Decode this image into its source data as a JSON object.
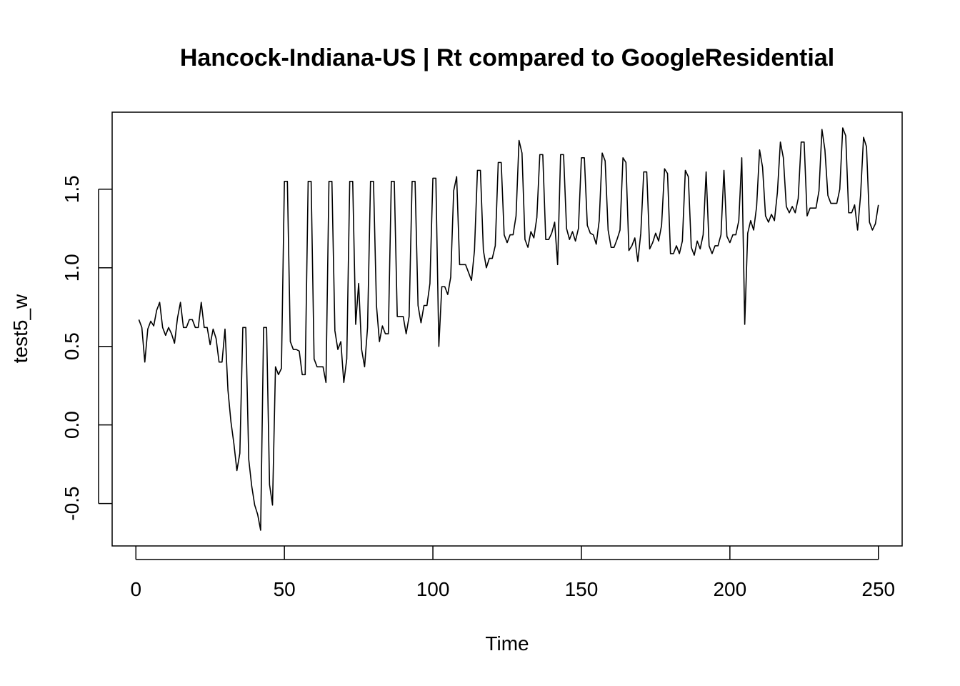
{
  "chart_data": {
    "type": "line",
    "title": "Hancock-Indiana-US | Rt compared to GoogleResidential",
    "xlabel": "Time",
    "ylabel": "test5_w",
    "xlim": [
      -8,
      258
    ],
    "ylim": [
      -0.77,
      1.99
    ],
    "xticks": [
      0,
      50,
      100,
      150,
      200,
      250
    ],
    "xtick_labels": [
      "0",
      "50",
      "100",
      "150",
      "200",
      "250"
    ],
    "yticks": [
      -0.5,
      0.0,
      0.5,
      1.0,
      1.5
    ],
    "ytick_labels": [
      "-0.5",
      "0.0",
      "0.5",
      "1.0",
      "1.5"
    ],
    "grid": false,
    "series": [
      {
        "x_start": 1,
        "values": [
          0.67,
          0.62,
          0.4,
          0.61,
          0.66,
          0.63,
          0.73,
          0.78,
          0.62,
          0.57,
          0.62,
          0.58,
          0.52,
          0.68,
          0.78,
          0.62,
          0.62,
          0.67,
          0.67,
          0.62,
          0.62,
          0.78,
          0.62,
          0.62,
          0.51,
          0.61,
          0.55,
          0.4,
          0.4,
          0.61,
          0.22,
          0.02,
          -0.12,
          -0.29,
          -0.18,
          0.62,
          0.62,
          -0.22,
          -0.39,
          -0.51,
          -0.57,
          -0.67,
          0.62,
          0.62,
          -0.38,
          -0.51,
          0.37,
          0.32,
          0.36,
          1.55,
          1.55,
          0.53,
          0.48,
          0.48,
          0.47,
          0.32,
          0.32,
          1.55,
          1.55,
          0.42,
          0.37,
          0.37,
          0.37,
          0.27,
          1.55,
          1.55,
          0.6,
          0.48,
          0.53,
          0.27,
          0.42,
          1.55,
          1.55,
          0.64,
          0.9,
          0.48,
          0.37,
          0.62,
          1.55,
          1.55,
          0.76,
          0.53,
          0.63,
          0.58,
          0.58,
          1.55,
          1.55,
          0.69,
          0.69,
          0.69,
          0.58,
          0.69,
          1.55,
          1.55,
          0.76,
          0.65,
          0.76,
          0.76,
          0.9,
          1.57,
          1.57,
          0.5,
          0.88,
          0.88,
          0.83,
          0.94,
          1.49,
          1.58,
          1.02,
          1.02,
          1.02,
          0.97,
          0.92,
          1.11,
          1.62,
          1.62,
          1.11,
          1.0,
          1.06,
          1.06,
          1.14,
          1.67,
          1.67,
          1.21,
          1.16,
          1.21,
          1.21,
          1.33,
          1.81,
          1.73,
          1.18,
          1.13,
          1.23,
          1.19,
          1.32,
          1.72,
          1.72,
          1.18,
          1.18,
          1.22,
          1.29,
          1.02,
          1.72,
          1.72,
          1.25,
          1.18,
          1.23,
          1.17,
          1.25,
          1.7,
          1.7,
          1.27,
          1.22,
          1.21,
          1.15,
          1.3,
          1.73,
          1.68,
          1.24,
          1.13,
          1.13,
          1.18,
          1.24,
          1.7,
          1.67,
          1.11,
          1.14,
          1.19,
          1.04,
          1.22,
          1.61,
          1.61,
          1.12,
          1.16,
          1.22,
          1.17,
          1.27,
          1.63,
          1.6,
          1.09,
          1.09,
          1.14,
          1.09,
          1.17,
          1.62,
          1.58,
          1.13,
          1.08,
          1.17,
          1.12,
          1.21,
          1.61,
          1.14,
          1.09,
          1.14,
          1.14,
          1.21,
          1.62,
          1.2,
          1.16,
          1.21,
          1.21,
          1.3,
          1.7,
          0.64,
          1.22,
          1.3,
          1.24,
          1.39,
          1.75,
          1.64,
          1.33,
          1.29,
          1.34,
          1.3,
          1.48,
          1.8,
          1.7,
          1.39,
          1.35,
          1.39,
          1.35,
          1.44,
          1.8,
          1.8,
          1.33,
          1.38,
          1.38,
          1.38,
          1.49,
          1.88,
          1.75,
          1.46,
          1.41,
          1.41,
          1.41,
          1.5,
          1.89,
          1.84,
          1.35,
          1.35,
          1.4,
          1.24,
          1.46,
          1.83,
          1.77,
          1.29,
          1.24,
          1.28,
          1.4
        ]
      }
    ]
  }
}
